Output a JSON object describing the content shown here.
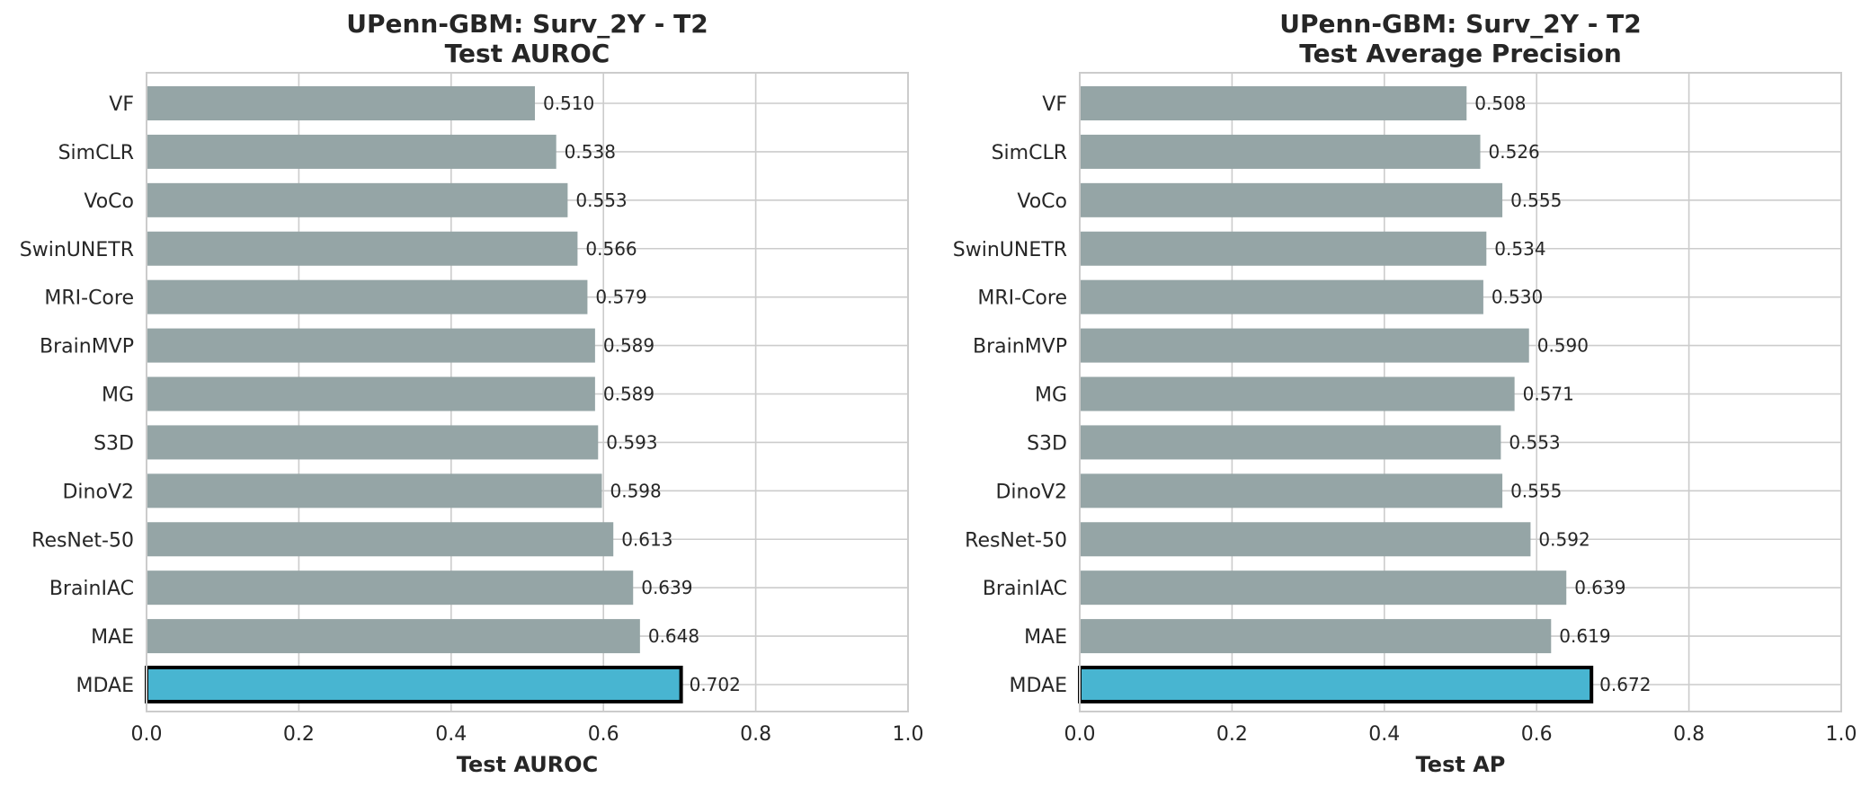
{
  "chart_data": [
    {
      "type": "bar",
      "orientation": "horizontal",
      "title": "UPenn-GBM: Surv_2Y - T2",
      "subtitle": "Test AUROC",
      "xlabel": "Test AUROC",
      "ylabel": "",
      "xlim": [
        0,
        1
      ],
      "xticks": [
        "0.0",
        "0.2",
        "0.4",
        "0.6",
        "0.8",
        "1.0"
      ],
      "grid": true,
      "categories": [
        "VF",
        "SimCLR",
        "VoCo",
        "SwinUNETR",
        "MRI-Core",
        "BrainMVP",
        "MG",
        "S3D",
        "DinoV2",
        "ResNet-50",
        "BrainIAC",
        "MAE",
        "MDAE"
      ],
      "values": [
        0.51,
        0.538,
        0.553,
        0.566,
        0.579,
        0.589,
        0.589,
        0.593,
        0.598,
        0.613,
        0.639,
        0.648,
        0.702
      ],
      "labels": [
        "0.510",
        "0.538",
        "0.553",
        "0.566",
        "0.579",
        "0.589",
        "0.589",
        "0.593",
        "0.598",
        "0.613",
        "0.639",
        "0.648",
        "0.702"
      ],
      "highlight": "MDAE",
      "colors": {
        "bar": "#95a5a6",
        "highlight": "#48b5d1",
        "highlight_edge": "#000000",
        "grid": "#cccccc"
      }
    },
    {
      "type": "bar",
      "orientation": "horizontal",
      "title": "UPenn-GBM: Surv_2Y - T2",
      "subtitle": "Test Average Precision",
      "xlabel": "Test AP",
      "ylabel": "",
      "xlim": [
        0,
        1
      ],
      "xticks": [
        "0.0",
        "0.2",
        "0.4",
        "0.6",
        "0.8",
        "1.0"
      ],
      "grid": true,
      "categories": [
        "VF",
        "SimCLR",
        "VoCo",
        "SwinUNETR",
        "MRI-Core",
        "BrainMVP",
        "MG",
        "S3D",
        "DinoV2",
        "ResNet-50",
        "BrainIAC",
        "MAE",
        "MDAE"
      ],
      "values": [
        0.508,
        0.526,
        0.555,
        0.534,
        0.53,
        0.59,
        0.571,
        0.553,
        0.555,
        0.592,
        0.639,
        0.619,
        0.672
      ],
      "labels": [
        "0.508",
        "0.526",
        "0.555",
        "0.534",
        "0.530",
        "0.590",
        "0.571",
        "0.553",
        "0.555",
        "0.592",
        "0.639",
        "0.619",
        "0.672"
      ],
      "highlight": "MDAE",
      "colors": {
        "bar": "#95a5a6",
        "highlight": "#48b5d1",
        "highlight_edge": "#000000",
        "grid": "#cccccc"
      }
    }
  ]
}
